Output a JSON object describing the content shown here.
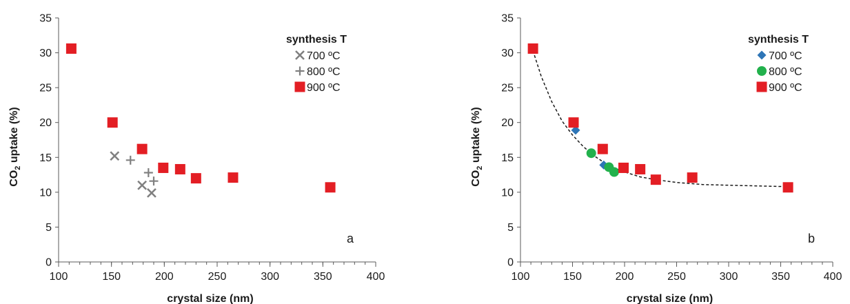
{
  "chart_data": [
    {
      "type": "scatter",
      "panel_label": "a",
      "xlabel": "crystal size (nm)",
      "ylabel_main": "CO",
      "ylabel_sub": "2",
      "ylabel_rest": " uptake (%)",
      "xlim": [
        100,
        400
      ],
      "ylim": [
        0,
        35
      ],
      "xticks": [
        100,
        150,
        200,
        250,
        300,
        350,
        400
      ],
      "yticks": [
        0,
        5,
        10,
        15,
        20,
        25,
        30,
        35
      ],
      "minor_xtick_step": 10,
      "grid": false,
      "legend_title": "synthesis T",
      "legend_position": "top-right",
      "series": [
        {
          "name": "700 ºC",
          "marker": "x",
          "color": "#808080",
          "points": [
            [
              153,
              15.2
            ],
            [
              179,
              11.0
            ],
            [
              188,
              9.9
            ]
          ]
        },
        {
          "name": "800 ºC",
          "marker": "plus",
          "color": "#808080",
          "points": [
            [
              168,
              14.6
            ],
            [
              185,
              12.8
            ],
            [
              190,
              11.6
            ]
          ]
        },
        {
          "name": "900 ºC",
          "marker": "square",
          "color": "#e31e24",
          "points": [
            [
              112,
              30.6
            ],
            [
              151,
              20.0
            ],
            [
              179,
              16.2
            ],
            [
              199,
              13.5
            ],
            [
              215,
              13.3
            ],
            [
              230,
              12.0
            ],
            [
              265,
              12.1
            ],
            [
              357,
              10.7
            ]
          ]
        }
      ]
    },
    {
      "type": "scatter",
      "panel_label": "b",
      "xlabel": "crystal size (nm)",
      "ylabel_main": "CO",
      "ylabel_sub": "2",
      "ylabel_rest": " uptake (%)",
      "xlim": [
        100,
        400
      ],
      "ylim": [
        0,
        35
      ],
      "xticks": [
        100,
        150,
        200,
        250,
        300,
        350,
        400
      ],
      "yticks": [
        0,
        5,
        10,
        15,
        20,
        25,
        30,
        35
      ],
      "minor_xtick_step": 10,
      "grid": false,
      "legend_title": "synthesis T",
      "legend_position": "top-right",
      "series": [
        {
          "name": "700 ºC",
          "marker": "diamond",
          "color": "#2e75b6",
          "points": [
            [
              153,
              18.9
            ],
            [
              180,
              13.9
            ]
          ]
        },
        {
          "name": "800 ºC",
          "marker": "circle",
          "color": "#22b14c",
          "points": [
            [
              168,
              15.6
            ],
            [
              185,
              13.6
            ],
            [
              190,
              12.9
            ]
          ]
        },
        {
          "name": "900 ºC",
          "marker": "square",
          "color": "#e31e24",
          "points": [
            [
              112,
              30.6
            ],
            [
              151,
              20.0
            ],
            [
              179,
              16.2
            ],
            [
              199,
              13.5
            ],
            [
              215,
              13.3
            ],
            [
              230,
              11.8
            ],
            [
              265,
              12.1
            ],
            [
              357,
              10.7
            ]
          ]
        }
      ],
      "trendline": {
        "style": "dashed",
        "color": "#1a1a1a",
        "points": [
          [
            112,
            30.3
          ],
          [
            120,
            26.6
          ],
          [
            130,
            23.0
          ],
          [
            140,
            20.2
          ],
          [
            150,
            18.2
          ],
          [
            160,
            16.6
          ],
          [
            170,
            15.3
          ],
          [
            180,
            14.3
          ],
          [
            190,
            13.5
          ],
          [
            200,
            12.9
          ],
          [
            215,
            12.2
          ],
          [
            230,
            11.8
          ],
          [
            250,
            11.4
          ],
          [
            275,
            11.1
          ],
          [
            300,
            11.0
          ],
          [
            330,
            10.9
          ],
          [
            357,
            10.8
          ]
        ]
      }
    }
  ]
}
